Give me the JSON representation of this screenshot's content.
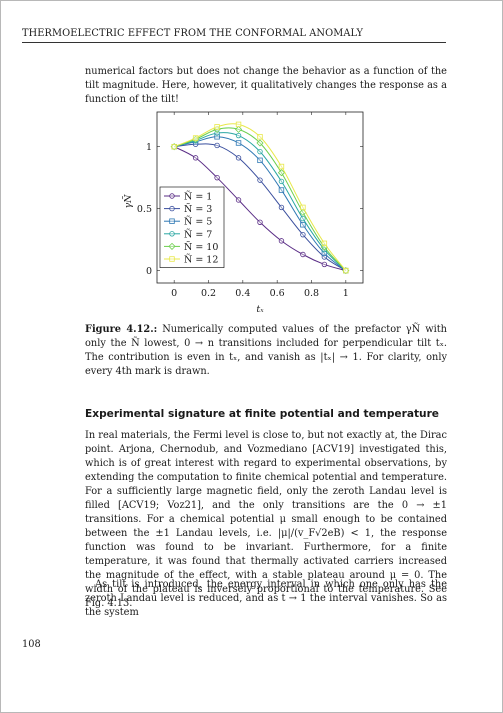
{
  "header": {
    "running_title": "THERMOELECTRIC EFFECT FROM THE CONFORMAL ANOMALY"
  },
  "intro_text": "numerical factors but does not change the behavior as a function of the tilt magnitude. Here, however, it qualitatively changes the response as a function of the tilt!",
  "chart_data": {
    "type": "line",
    "xlabel": "tₓ",
    "ylabel": "γÑ",
    "xlim": [
      -0.1,
      1.1
    ],
    "ylim": [
      -0.1,
      1.28
    ],
    "x_ticks": [
      "0",
      "0.2",
      "0.4",
      "0.6",
      "0.8",
      "1"
    ],
    "x_tick_values": [
      0,
      0.2,
      0.4,
      0.6,
      0.8,
      1
    ],
    "y_ticks": [
      "0",
      "0.5",
      "1"
    ],
    "y_tick_values": [
      0,
      0.5,
      1
    ],
    "grid": false,
    "legend_position": "bottom-left",
    "x": [
      0,
      0.125,
      0.25,
      0.375,
      0.5,
      0.625,
      0.75,
      0.875,
      1
    ],
    "series": [
      {
        "name": "Ñ =  1",
        "color": "#5a2d86",
        "marker": "circle",
        "values": [
          1.0,
          0.91,
          0.75,
          0.57,
          0.39,
          0.24,
          0.13,
          0.05,
          0.0
        ]
      },
      {
        "name": "Ñ =  3",
        "color": "#3a4f9e",
        "marker": "circle",
        "values": [
          1.0,
          1.02,
          1.01,
          0.91,
          0.73,
          0.51,
          0.29,
          0.11,
          0.0
        ]
      },
      {
        "name": "Ñ =  5",
        "color": "#2e78b4",
        "marker": "square",
        "values": [
          1.0,
          1.04,
          1.08,
          1.03,
          0.89,
          0.65,
          0.37,
          0.14,
          0.0
        ]
      },
      {
        "name": "Ñ =  7",
        "color": "#2aa7a3",
        "marker": "circle",
        "values": [
          1.0,
          1.05,
          1.11,
          1.09,
          0.96,
          0.72,
          0.42,
          0.17,
          0.0
        ]
      },
      {
        "name": "Ñ = 10",
        "color": "#6ccf4d",
        "marker": "diamond",
        "values": [
          1.0,
          1.06,
          1.14,
          1.14,
          1.03,
          0.79,
          0.47,
          0.19,
          0.0
        ]
      },
      {
        "name": "Ñ = 12",
        "color": "#e8e84a",
        "marker": "square",
        "values": [
          1.0,
          1.07,
          1.16,
          1.18,
          1.08,
          0.84,
          0.51,
          0.22,
          0.0
        ]
      }
    ]
  },
  "caption": {
    "label": "Figure 4.12.:",
    "text": " Numerically computed values of the prefactor γÑ with only the Ñ lowest, 0 → n transitions included for perpendicular tilt tₓ. The contribution is even in tₓ, and vanish as |tₓ| → 1. For clarity, only every 4th mark is drawn."
  },
  "section_title": "Experimental signature at finite potential and temperature",
  "body_paragraph_1": "In real materials, the Fermi level is close to, but not exactly at, the Dirac point. Arjona, Chernodub, and Vozmediano [ACV19] investigated this, which is of great interest with regard to experimental observations, by extending the computation to finite chemical potential and temperature. For a sufficiently large magnetic field, only the zeroth Landau level is filled [ACV19; Voz21], and the only transitions are the 0 → ±1 transitions. For a chemical potential μ small enough to be contained between the ±1 Landau levels, i.e. |μ|/(v_F√2eB) < 1, the response function was found to be invariant. Furthermore, for a finite temperature, it was found that thermally activated carriers increased the magnitude of the effect, with a stable plateau around μ = 0. The width of the plateau is inversely proportional to the temperature. See Fig. 4.13.",
  "body_paragraph_2": "As tilt is introduced, the energy interval in which one only has the zeroth Landau level is reduced, and as t → 1 the interval vanishes. So as the system",
  "page_number": "108"
}
